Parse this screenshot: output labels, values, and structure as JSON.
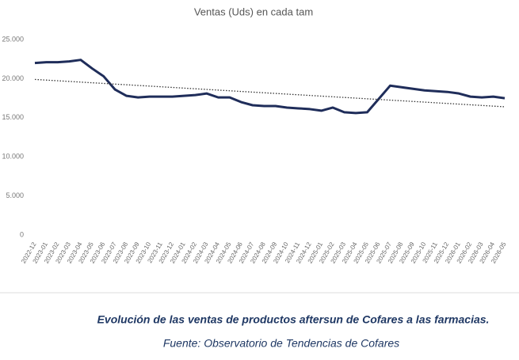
{
  "chart_data": {
    "type": "line",
    "title": "Ventas (Uds) en cada tam",
    "categories": [
      "2022-12",
      "2023-01",
      "2023-02",
      "2023-03",
      "2023-04",
      "2023-05",
      "2023-06",
      "2023-07",
      "2023-08",
      "2023-09",
      "2023-10",
      "2023-11",
      "2023-12",
      "2024-01",
      "2024-02",
      "2024-03",
      "2024-04",
      "2024-05",
      "2024-06",
      "2024-07",
      "2024-08",
      "2024-09",
      "2024-10",
      "2024-11",
      "2024-12",
      "2025-01",
      "2025-02",
      "2025-03",
      "2025-04",
      "2025-05",
      "2025-06",
      "2025-07",
      "2025-08",
      "2025-09",
      "2025-10",
      "2025-11",
      "2025-12",
      "2026-01",
      "2026-02",
      "2026-03",
      "2026-04",
      "2026-05"
    ],
    "series": [
      {
        "color": "#1f2d5a",
        "values": [
          22000,
          22100,
          22100,
          22200,
          22400,
          21300,
          20300,
          18600,
          17800,
          17600,
          17700,
          17700,
          17700,
          17800,
          17900,
          18100,
          17600,
          17600,
          17000,
          16600,
          16500,
          16500,
          16300,
          16200,
          16100,
          15900,
          16300,
          15700,
          15600,
          15700,
          17400,
          19100,
          18900,
          18700,
          18500,
          18400,
          18300,
          18100,
          17700,
          17600,
          17700,
          17500
        ]
      }
    ],
    "trendline": {
      "color": "#333333",
      "values": [
        19900,
        16400
      ]
    },
    "ylim": [
      0,
      25000
    ],
    "yticks": [
      {
        "value": 0,
        "label": "0"
      },
      {
        "value": 5000,
        "label": "5.000"
      },
      {
        "value": 10000,
        "label": "10.000"
      },
      {
        "value": 15000,
        "label": "15.000"
      },
      {
        "value": 20000,
        "label": "20.000"
      },
      {
        "value": 25000,
        "label": "25.000"
      }
    ],
    "grid": false
  },
  "caption": "Evolución de las ventas de productos aftersun de Cofares a las farmacias.",
  "source": "Fuente: Observatorio de Tendencias de Cofares"
}
